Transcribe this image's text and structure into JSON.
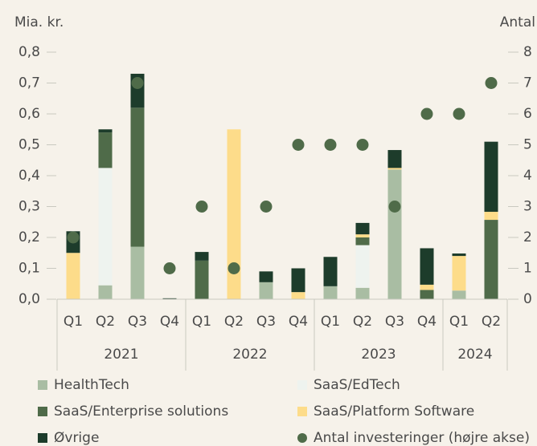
{
  "chart_data": {
    "type": "bar",
    "stacked": true,
    "y_axis_label": "Mia. kr.",
    "y2_axis_label": "Antal",
    "categories": [
      "Q1",
      "Q2",
      "Q3",
      "Q4",
      "Q1",
      "Q2",
      "Q3",
      "Q4",
      "Q1",
      "Q2",
      "Q3",
      "Q4",
      "Q1",
      "Q2"
    ],
    "groups": [
      {
        "label": "2021",
        "span": 4
      },
      {
        "label": "2022",
        "span": 4
      },
      {
        "label": "2023",
        "span": 4
      },
      {
        "label": "2024",
        "span": 2
      }
    ],
    "ylim": [
      0,
      0.8
    ],
    "yticks": [
      {
        "value": 0,
        "label": "0,0"
      },
      {
        "value": 0.1,
        "label": "0,1"
      },
      {
        "value": 0.2,
        "label": "0,2"
      },
      {
        "value": 0.3,
        "label": "0,3"
      },
      {
        "value": 0.4,
        "label": "0,4"
      },
      {
        "value": 0.5,
        "label": "0,5"
      },
      {
        "value": 0.6,
        "label": "0,6"
      },
      {
        "value": 0.7,
        "label": "0,7"
      },
      {
        "value": 0.8,
        "label": "0,8"
      }
    ],
    "y2lim": [
      0,
      8
    ],
    "y2ticks": [
      0,
      1,
      2,
      3,
      4,
      5,
      6,
      7,
      8
    ],
    "series": [
      {
        "name": "HealthTech",
        "color": "#a9bda3",
        "values": [
          0,
          0.045,
          0.17,
          0,
          0,
          0,
          0.055,
          0,
          0.042,
          0.037,
          0.42,
          0,
          0.028,
          0
        ]
      },
      {
        "name": "SaaS/EdTech",
        "color": "#eef3ef",
        "values": [
          0,
          0.38,
          0,
          0,
          0,
          0,
          0,
          0,
          0,
          0.138,
          0,
          0,
          0,
          0
        ]
      },
      {
        "name": "SaaS/Enterprise solutions",
        "color": "#4f6b49",
        "values": [
          0,
          0.115,
          0.45,
          0,
          0.125,
          0,
          0,
          0,
          0,
          0.025,
          0,
          0.03,
          0,
          0.257
        ]
      },
      {
        "name": "SaaS/Platform Software",
        "color": "#fddc8a",
        "values": [
          0.15,
          0,
          0,
          0,
          0,
          0.55,
          0,
          0.023,
          0,
          0.01,
          0.005,
          0.017,
          0.112,
          0.026
        ]
      },
      {
        "name": "Øvrige",
        "color": "#1d3c2b",
        "values": [
          0.07,
          0.01,
          0.11,
          0.003,
          0.028,
          0,
          0.035,
          0.077,
          0.095,
          0.037,
          0.058,
          0.118,
          0.008,
          0.227
        ]
      },
      {
        "name": "Antal investeringer (højre akse)",
        "type": "scatter",
        "axis": "y2",
        "color": "#4f6b49",
        "values": [
          2,
          null,
          7,
          1,
          3,
          1,
          3,
          5,
          5,
          5,
          3,
          6,
          6,
          7
        ]
      }
    ]
  }
}
